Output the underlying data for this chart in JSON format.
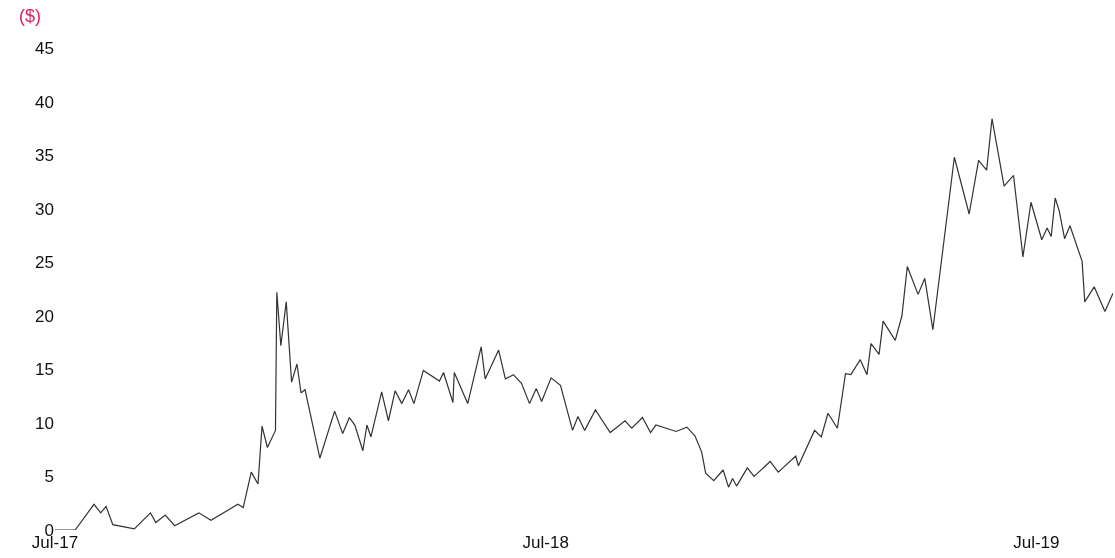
{
  "chart_data": {
    "type": "line",
    "ylabel": "($)",
    "x": [
      "2017-07-01",
      "2017-07-16",
      "2017-07-30",
      "2017-08-04",
      "2017-08-08",
      "2017-08-13",
      "2017-08-29",
      "2017-09-10",
      "2017-09-14",
      "2017-09-21",
      "2017-09-28",
      "2017-10-16",
      "2017-10-25",
      "2017-11-14",
      "2017-11-18",
      "2017-11-24",
      "2017-11-29",
      "2017-12-02",
      "2017-12-06",
      "2017-12-12",
      "2017-12-13",
      "2017-12-16",
      "2017-12-20",
      "2017-12-24",
      "2017-12-28",
      "2017-12-31",
      "2018-01-03",
      "2018-01-14",
      "2018-01-25",
      "2018-01-31",
      "2018-02-05",
      "2018-02-09",
      "2018-02-15",
      "2018-02-18",
      "2018-02-21",
      "2018-03-01",
      "2018-03-06",
      "2018-03-11",
      "2018-03-16",
      "2018-03-21",
      "2018-03-25",
      "2018-04-01",
      "2018-04-13",
      "2018-04-16",
      "2018-04-23",
      "2018-04-24",
      "2018-05-04",
      "2018-05-14",
      "2018-05-17",
      "2018-05-27",
      "2018-06-01",
      "2018-06-07",
      "2018-06-13",
      "2018-06-19",
      "2018-06-24",
      "2018-06-28",
      "2018-07-05",
      "2018-07-12",
      "2018-07-21",
      "2018-07-25",
      "2018-07-30",
      "2018-08-07",
      "2018-08-18",
      "2018-08-29",
      "2018-09-03",
      "2018-09-11",
      "2018-09-17",
      "2018-09-21",
      "2018-10-06",
      "2018-10-14",
      "2018-10-20",
      "2018-10-25",
      "2018-10-28",
      "2018-11-03",
      "2018-11-10",
      "2018-11-14",
      "2018-11-17",
      "2018-11-20",
      "2018-11-28",
      "2018-12-03",
      "2018-12-15",
      "2018-12-21",
      "2019-01-03",
      "2019-01-05",
      "2019-01-17",
      "2019-01-22",
      "2019-01-27",
      "2019-02-03",
      "2019-02-09",
      "2019-02-13",
      "2019-02-20",
      "2019-02-25",
      "2019-02-28",
      "2019-03-06",
      "2019-03-09",
      "2019-03-18",
      "2019-03-23",
      "2019-03-27",
      "2019-04-04",
      "2019-04-09",
      "2019-04-15",
      "2019-05-01",
      "2019-05-12",
      "2019-05-19",
      "2019-05-25",
      "2019-05-29",
      "2019-06-07",
      "2019-06-14",
      "2019-06-21",
      "2019-06-27",
      "2019-07-05",
      "2019-07-09",
      "2019-07-12",
      "2019-07-15",
      "2019-07-18",
      "2019-07-22",
      "2019-07-26",
      "2019-08-04",
      "2019-08-06",
      "2019-08-13",
      "2019-08-21",
      "2019-08-27"
    ],
    "series": [
      {
        "color": "#333333",
        "values": [
          0,
          0,
          2.4,
          1.6,
          2.2,
          0.5,
          0.1,
          1.6,
          0.7,
          1.4,
          0.4,
          1.6,
          0.9,
          2.4,
          2.1,
          5.4,
          4.3,
          9.7,
          7.7,
          9.3,
          22.2,
          17.2,
          21.3,
          13.8,
          15.5,
          12.8,
          13.1,
          6.7,
          11.1,
          9.0,
          10.5,
          9.8,
          7.4,
          9.8,
          8.7,
          12.9,
          10.2,
          13.0,
          11.8,
          13.1,
          11.8,
          14.9,
          13.9,
          14.7,
          11.9,
          14.7,
          11.8,
          17.1,
          14.1,
          16.8,
          14.1,
          14.5,
          13.7,
          11.8,
          13.2,
          12.0,
          14.2,
          13.5,
          9.3,
          10.6,
          9.3,
          11.2,
          9.1,
          10.2,
          9.5,
          10.5,
          9.1,
          9.8,
          9.2,
          9.6,
          8.8,
          7.3,
          5.3,
          4.6,
          5.6,
          4.0,
          4.8,
          4.1,
          5.8,
          5.0,
          6.4,
          5.4,
          6.9,
          6.0,
          9.3,
          8.7,
          10.9,
          9.5,
          14.6,
          14.5,
          15.9,
          14.5,
          17.4,
          16.4,
          19.5,
          17.7,
          20.0,
          24.6,
          22.0,
          23.5,
          18.7,
          34.8,
          29.5,
          34.5,
          33.6,
          38.4,
          32.1,
          33.1,
          25.5,
          30.6,
          27.1,
          28.2,
          27.4,
          31.0,
          29.8,
          27.2,
          28.4,
          25.1,
          21.3,
          22.7,
          20.4,
          22.1
        ]
      }
    ],
    "xticks": [
      {
        "value": "2017-07-01",
        "label": "Jul-17"
      },
      {
        "value": "2018-07-01",
        "label": "Jul-18"
      },
      {
        "value": "2019-07-01",
        "label": "Jul-19"
      }
    ],
    "yticks": [
      0,
      5,
      10,
      15,
      20,
      25,
      30,
      35,
      40,
      45
    ],
    "xlim": [
      "2017-07-01",
      "2019-08-27"
    ],
    "ylim": [
      0,
      45
    ],
    "marker": "none",
    "line_style": "solid"
  }
}
